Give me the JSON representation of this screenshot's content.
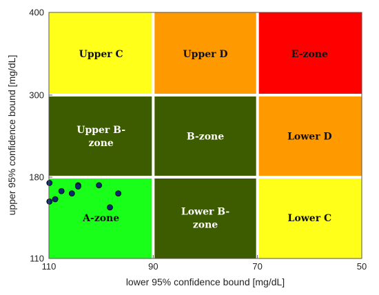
{
  "chart_data": {
    "type": "scatter",
    "title": "",
    "xlabel": "lower 95% confidence bound [mg/dL]",
    "ylabel": "upper 95% confidence bound [mg/dL]",
    "x_reversed": true,
    "xlim": [
      110,
      50
    ],
    "ylim": [
      110,
      400
    ],
    "x_ticks": [
      "110",
      "90",
      "70",
      "50"
    ],
    "y_ticks": [
      "110",
      "180",
      "300",
      "400"
    ],
    "x_bounds": [
      110,
      90,
      70,
      50
    ],
    "y_bounds": [
      110,
      180,
      300,
      400
    ],
    "zones": [
      {
        "row": 0,
        "col": 0,
        "label": [
          "Upper C"
        ],
        "color": "#ffff1a",
        "text": "dark"
      },
      {
        "row": 0,
        "col": 1,
        "label": [
          "Upper D"
        ],
        "color": "#ff9900",
        "text": "dark"
      },
      {
        "row": 0,
        "col": 2,
        "label": [
          "E-zone"
        ],
        "color": "#ff0000",
        "text": "dark"
      },
      {
        "row": 1,
        "col": 0,
        "label": [
          "Upper B-",
          "zone"
        ],
        "color": "#3d5c00",
        "text": "light"
      },
      {
        "row": 1,
        "col": 1,
        "label": [
          "B-zone"
        ],
        "color": "#3d5c00",
        "text": "light"
      },
      {
        "row": 1,
        "col": 2,
        "label": [
          "Lower D"
        ],
        "color": "#ff9900",
        "text": "dark"
      },
      {
        "row": 2,
        "col": 0,
        "label": [
          "A-zone"
        ],
        "color": "#1aff1a",
        "text": "dark"
      },
      {
        "row": 2,
        "col": 1,
        "label": [
          "Lower B-",
          "zone"
        ],
        "color": "#3d5c00",
        "text": "light"
      },
      {
        "row": 2,
        "col": 2,
        "label": [
          "Lower C"
        ],
        "color": "#ffff1a",
        "text": "dark"
      }
    ],
    "grid_line_color": "#ffffff",
    "point_color": "#0a2a6e",
    "points": [
      {
        "x": 109.9,
        "y": 175
      },
      {
        "x": 109.9,
        "y": 159
      },
      {
        "x": 108.8,
        "y": 161
      },
      {
        "x": 107.6,
        "y": 168
      },
      {
        "x": 105.6,
        "y": 166
      },
      {
        "x": 104.4,
        "y": 173
      },
      {
        "x": 104.4,
        "y": 172
      },
      {
        "x": 100.4,
        "y": 173
      },
      {
        "x": 98.3,
        "y": 154
      },
      {
        "x": 96.7,
        "y": 166
      }
    ]
  }
}
